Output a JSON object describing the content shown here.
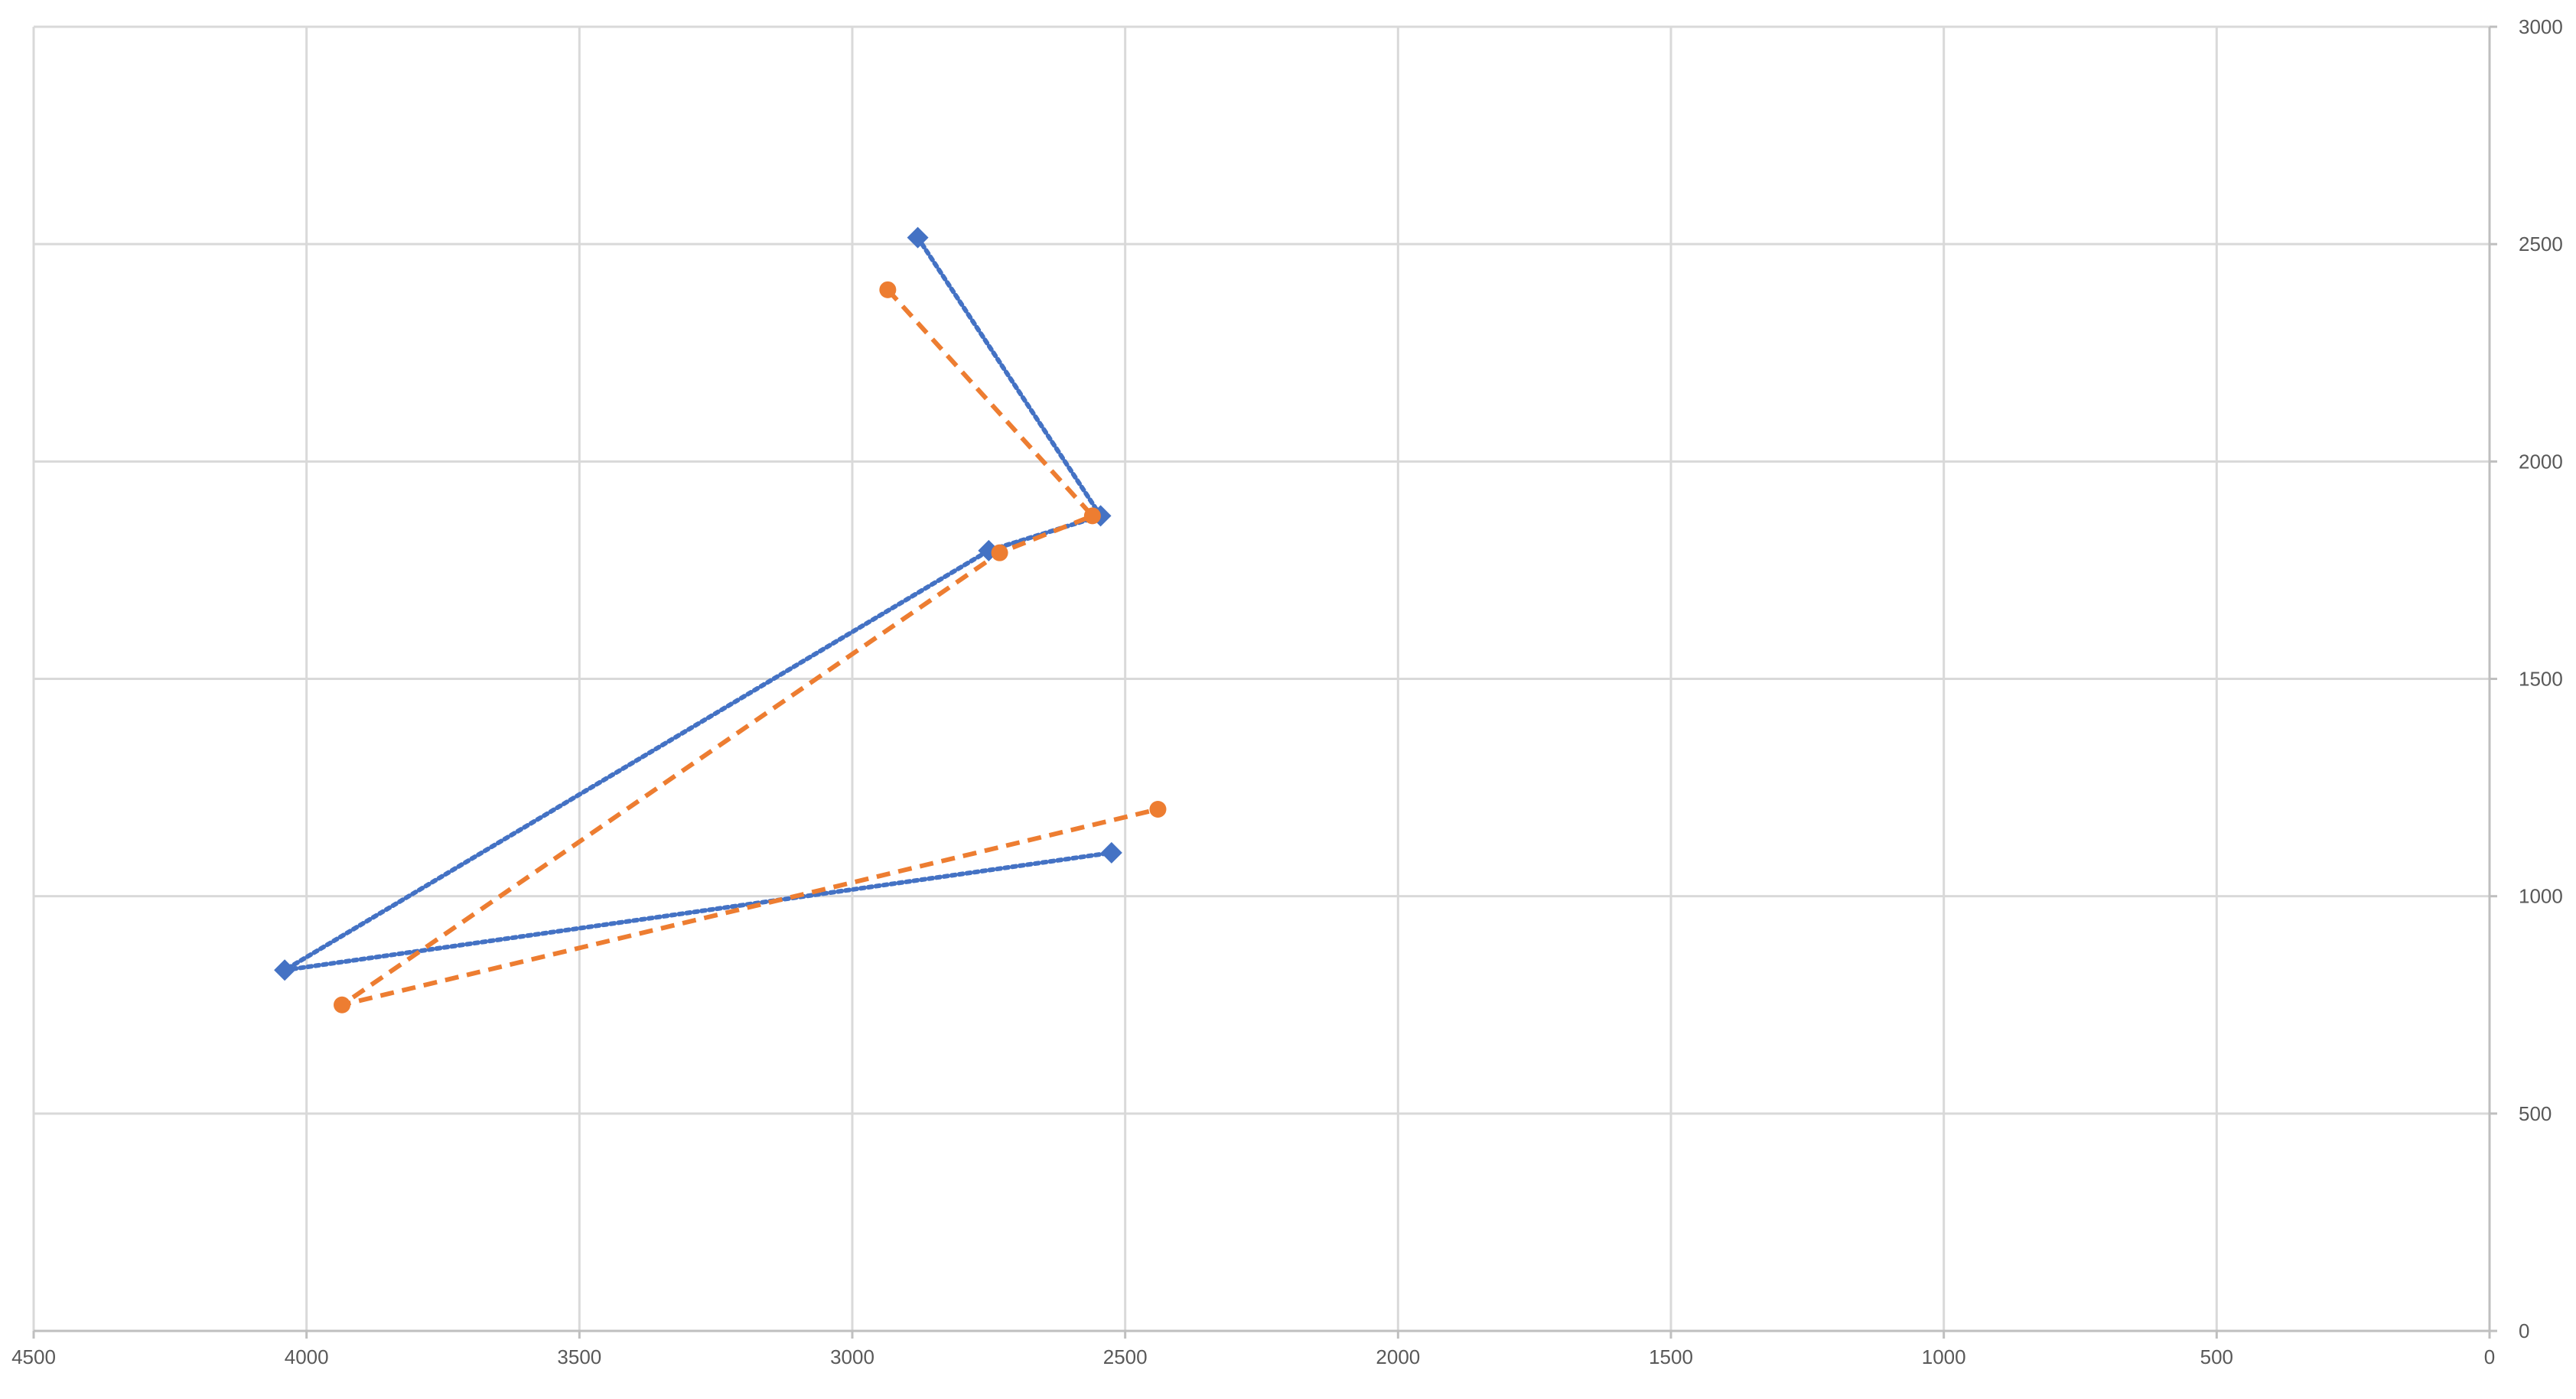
{
  "chart_data": {
    "type": "scatter",
    "title": "",
    "xlabel": "",
    "ylabel": "",
    "x_reversed": true,
    "xlim": [
      0,
      4500
    ],
    "ylim": [
      0,
      3000
    ],
    "x_ticks": [
      4500,
      4000,
      3500,
      3000,
      2500,
      2000,
      1500,
      1000,
      500,
      0
    ],
    "x_tick_labels": [
      "4500",
      "4000",
      "3500",
      "3000",
      "2500",
      "2000",
      "1500",
      "1000",
      "500",
      "0"
    ],
    "y_ticks": [
      0,
      500,
      1000,
      1500,
      2000,
      2500,
      3000
    ],
    "y_tick_labels": [
      "0",
      "500",
      "1000",
      "1500",
      "2000",
      "2500",
      "3000"
    ],
    "y_axis_position": "right",
    "grid": true,
    "legend": "none",
    "series": [
      {
        "color": "#4472c4",
        "marker": "diamond",
        "line_style": "dotted",
        "points": [
          {
            "x": 2880,
            "y": 2515
          },
          {
            "x": 2545,
            "y": 1875
          },
          {
            "x": 2750,
            "y": 1795
          },
          {
            "x": 4040,
            "y": 830
          },
          {
            "x": 2525,
            "y": 1100
          }
        ]
      },
      {
        "color": "#ed7d31",
        "marker": "circle",
        "line_style": "dashed",
        "points": [
          {
            "x": 2935,
            "y": 2395
          },
          {
            "x": 2560,
            "y": 1875
          },
          {
            "x": 2730,
            "y": 1790
          },
          {
            "x": 3935,
            "y": 750
          },
          {
            "x": 2440,
            "y": 1200
          }
        ]
      }
    ]
  }
}
